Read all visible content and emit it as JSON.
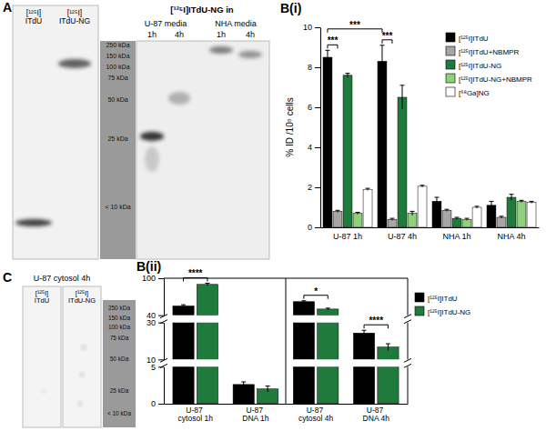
{
  "gels": [
    {
      "panel_label": "A",
      "lanes": [
        "[¹²⁵I]ITdU",
        "[¹²⁵I]ITdU-NG"
      ],
      "group_title": "[¹²⁵I]ITdU-NG in",
      "groups": [
        {
          "name": "U-87 media",
          "lanes": [
            "1h",
            "4h"
          ]
        },
        {
          "name": "NHA media",
          "lanes": [
            "1h",
            "4h"
          ]
        }
      ],
      "ladder": [
        "250 kDa",
        "150 kDa",
        "100 kDa",
        "75 kDa",
        "50 kDa",
        "25 kDa",
        "< 10 kDa"
      ]
    },
    {
      "panel_label": "C",
      "title": "U-87 cytosol 4h",
      "lanes": [
        "[¹²⁵I]ITdU",
        "[¹²⁵I]ITdU-NG"
      ],
      "ladder": [
        "250 kDa",
        "150 kDa",
        "100 kDa",
        "75 kDa",
        "50 kDa",
        "25 kDa",
        "< 10 kDa"
      ]
    }
  ],
  "chart_data": [
    {
      "panel_label": "B(i)",
      "type": "bar",
      "y_label": "% ID /10⁵ cells",
      "categories": [
        "U-87 1h",
        "U-87 4h",
        "NHA 1h",
        "NHA 4h"
      ],
      "series": [
        {
          "name": "[¹²⁵I]ITdU",
          "color": "#000000",
          "values": [
            8.5,
            8.3,
            1.3,
            1.1
          ],
          "errors": [
            0.35,
            0.8,
            0.2,
            0.2
          ]
        },
        {
          "name": "[¹²⁵I]ITdU+NBMPR",
          "color": "#a6a6a6",
          "values": [
            0.8,
            0.4,
            0.85,
            0.5
          ],
          "errors": [
            0.05,
            0.05,
            0.05,
            0.05
          ]
        },
        {
          "name": "[¹²⁵I]ITdU-NG",
          "color": "#1e7b3c",
          "values": [
            7.6,
            6.5,
            0.45,
            1.5
          ],
          "errors": [
            0.1,
            0.6,
            0.05,
            0.15
          ]
        },
        {
          "name": "[¹²⁵I]ITdU-NG+NBMPR",
          "color": "#8fd07a",
          "values": [
            0.7,
            0.7,
            0.4,
            1.3
          ],
          "errors": [
            0.05,
            0.1,
            0.05,
            0.05
          ]
        },
        {
          "name": "[⁶⁸Ga]NG",
          "color": "#ffffff",
          "values": [
            1.9,
            2.05,
            1.0,
            1.25
          ],
          "errors": [
            0.05,
            0.05,
            0.05,
            0.05
          ]
        }
      ],
      "ylim": [
        0,
        10
      ],
      "yticks": [
        0,
        2,
        4,
        6,
        8,
        10
      ],
      "legend": "upper right",
      "annotations": [
        {
          "text": "***",
          "from": {
            "category": "U-87 1h",
            "series": "[¹²⁵I]ITdU"
          },
          "to": {
            "category": "U-87 1h",
            "series": "[¹²⁵I]ITdU+NBMPR"
          }
        },
        {
          "text": "***",
          "from": {
            "category": "U-87 4h",
            "series": "[¹²⁵I]ITdU"
          },
          "to": {
            "category": "U-87 4h",
            "series": "[¹²⁵I]ITdU+NBMPR"
          }
        },
        {
          "text": "***",
          "from": {
            "category": "U-87 1h",
            "series": "[¹²⁵I]ITdU"
          },
          "to": {
            "category": "U-87 4h",
            "series": "[¹²⁵I]ITdU"
          }
        }
      ]
    },
    {
      "panel_label": "B(ii)",
      "type": "bar",
      "categories": [
        "U-87 cytosol 1h",
        "U-87 DNA 1h",
        "U-87 cytosol 4h",
        "U-87 DNA 4h"
      ],
      "series": [
        {
          "name": "[¹²⁵I]ITdU",
          "color": "#000000",
          "values": [
            55,
            2.6,
            62,
            24.3
          ],
          "errors": [
            2,
            0.35,
            1.5,
            1.5
          ]
        },
        {
          "name": "[¹²⁵I]ITdU-NG",
          "color": "#1e7b3c",
          "values": [
            90,
            2.0,
            50,
            16.7
          ],
          "errors": [
            2,
            0.4,
            1.5,
            1.8
          ]
        }
      ],
      "ylim": [
        0,
        100
      ],
      "yticks": [
        0,
        5,
        10,
        30,
        40,
        100
      ],
      "y_segments": [
        [
          0,
          5
        ],
        [
          10,
          30
        ],
        [
          40,
          100
        ]
      ],
      "legend": "right",
      "annotations": [
        {
          "text": "****",
          "from": {
            "category": "U-87 cytosol 1h",
            "series": "[¹²⁵I]ITdU"
          },
          "to": {
            "category": "U-87 cytosol 1h",
            "series": "[¹²⁵I]ITdU-NG"
          }
        },
        {
          "text": "*",
          "from": {
            "category": "U-87 cytosol 4h",
            "series": "[¹²⁵I]ITdU"
          },
          "to": {
            "category": "U-87 cytosol 4h",
            "series": "[¹²⁵I]ITdU-NG"
          }
        },
        {
          "text": "****",
          "from": {
            "category": "U-87 DNA 4h",
            "series": "[¹²⁵I]ITdU"
          },
          "to": {
            "category": "U-87 DNA 4h",
            "series": "[¹²⁵I]ITdU-NG"
          }
        }
      ]
    }
  ]
}
